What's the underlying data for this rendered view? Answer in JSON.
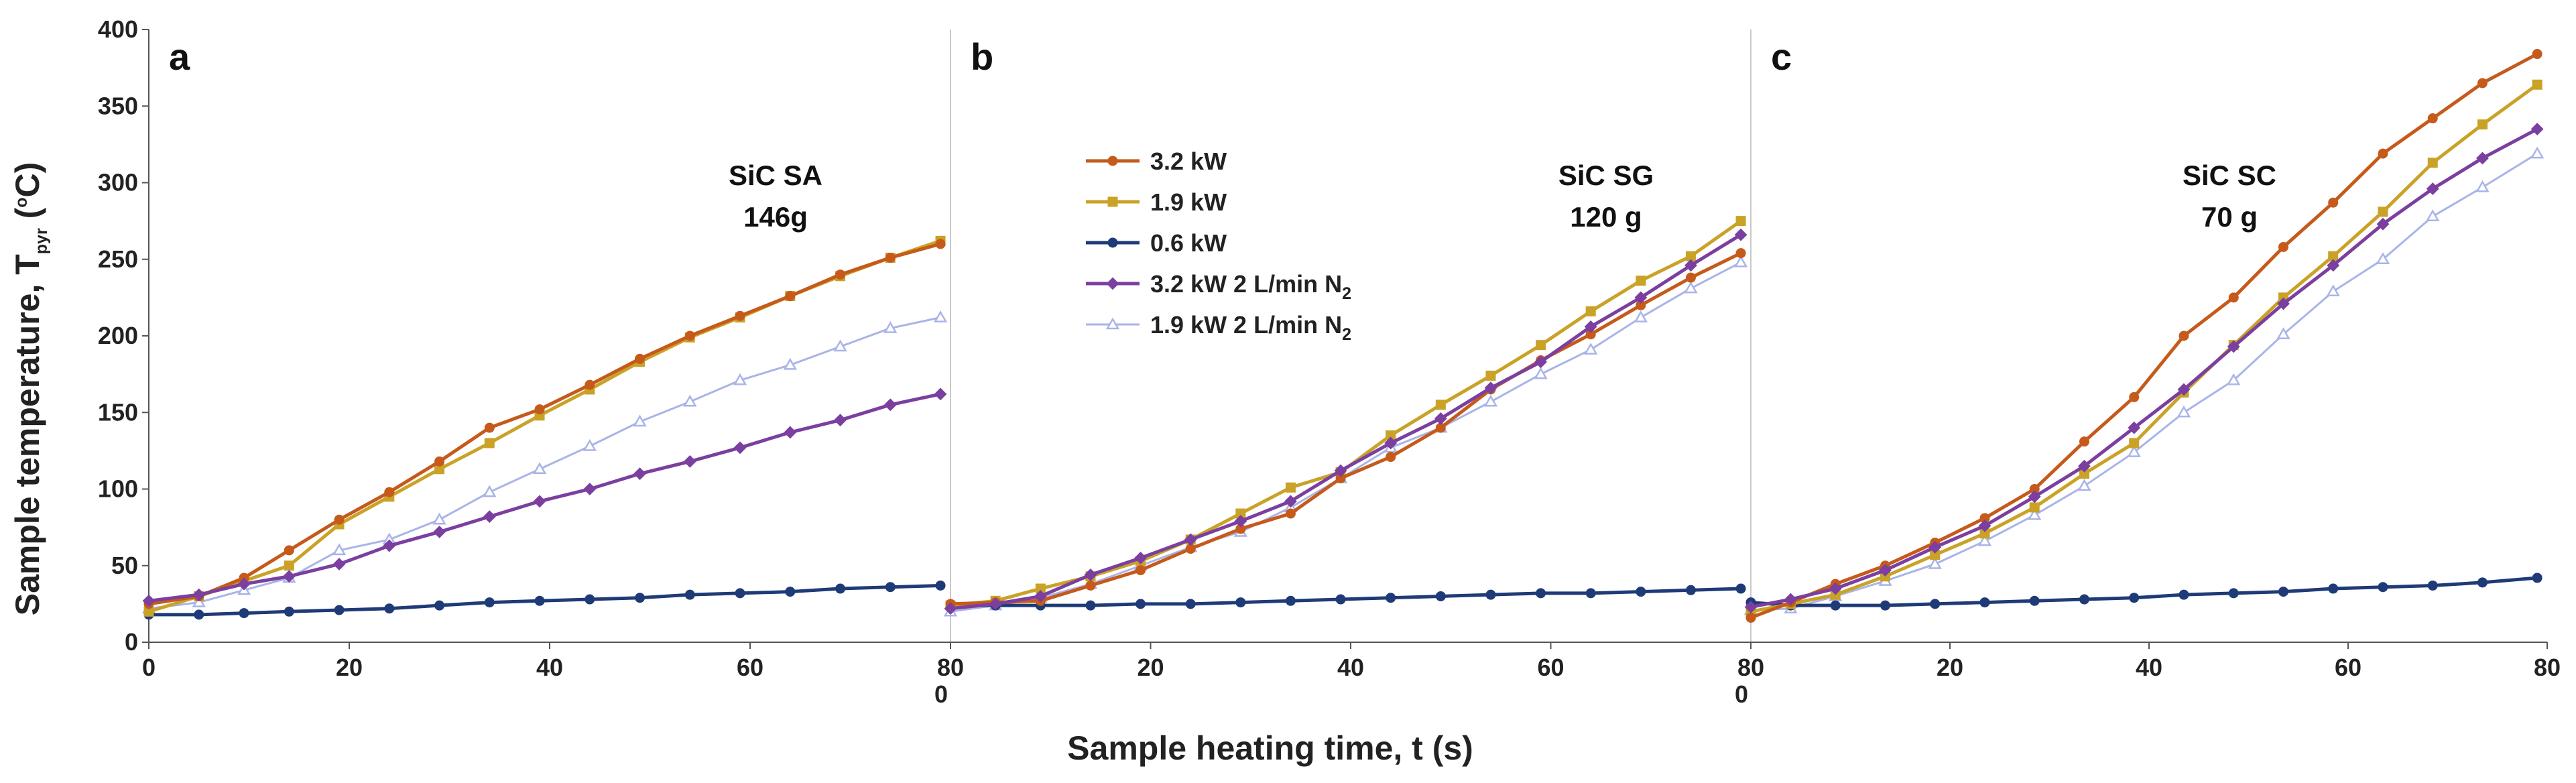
{
  "chart_data": {
    "type": "line",
    "ylabel": "Sample temperature, T",
    "ylabel_sub": "pyr",
    "ylabel_units_open": " (",
    "ylabel_units_sup": "o",
    "ylabel_units_close": "C)",
    "xlabel": "Sample heating time, t (s)",
    "ylim": [
      0,
      400
    ],
    "yticks": [
      0,
      50,
      100,
      150,
      200,
      250,
      300,
      350,
      400
    ],
    "xticks": [
      0,
      20,
      40,
      60,
      80
    ],
    "xlim": [
      0,
      80
    ],
    "panel_boundary_zero_label": "0",
    "grid": false,
    "legend": {
      "placement": "panel-b-top-left",
      "entries": [
        {
          "id": "s1",
          "label": "3.2 kW",
          "sub": ""
        },
        {
          "id": "s2",
          "label": "1.9 kW",
          "sub": ""
        },
        {
          "id": "s3",
          "label": "0.6 kW",
          "sub": ""
        },
        {
          "id": "s4",
          "label": "3.2 kW 2 L/min N",
          "sub": "2"
        },
        {
          "id": "s5",
          "label": "1.9 kW 2 L/min N",
          "sub": "2"
        }
      ]
    },
    "series_styles": [
      {
        "id": "s1",
        "name": "3.2 kW",
        "color": "#C55A1B",
        "marker": "circle",
        "fill": "#C55A1B"
      },
      {
        "id": "s2",
        "name": "1.9 kW",
        "color": "#C9A227",
        "marker": "square",
        "fill": "#C9A227"
      },
      {
        "id": "s3",
        "name": "0.6 kW",
        "color": "#1F3B77",
        "marker": "circle",
        "fill": "#1F3B77"
      },
      {
        "id": "s4",
        "name": "3.2 kW 2 L/min N2",
        "color": "#7B3FA0",
        "marker": "diamond",
        "fill": "#7B3FA0"
      },
      {
        "id": "s5",
        "name": "1.9 kW 2 L/min N2",
        "color": "#A9B4E8",
        "marker": "triangle",
        "fill": "#ffffff"
      }
    ],
    "panels": [
      {
        "letter": "a",
        "sample_line1": "SiC SA",
        "sample_line2": "146g",
        "x": [
          0,
          5,
          9.5,
          14,
          19,
          24,
          29,
          34,
          39,
          44,
          49,
          54,
          59,
          64,
          69,
          74,
          79
        ],
        "series": [
          {
            "id": "s1",
            "values": [
              25,
              30,
              42,
              60,
              80,
              98,
              118,
              140,
              152,
              168,
              185,
              200,
              213,
              226,
              240,
              251,
              260
            ]
          },
          {
            "id": "s2",
            "values": [
              20,
              30,
              40,
              50,
              77,
              95,
              113,
              130,
              148,
              165,
              183,
              199,
              212,
              226,
              239,
              251,
              262
            ]
          },
          {
            "id": "s3",
            "values": [
              18,
              18,
              19,
              20,
              21,
              22,
              24,
              26,
              27,
              28,
              29,
              31,
              32,
              33,
              35,
              36,
              37
            ]
          },
          {
            "id": "s4",
            "values": [
              27,
              31,
              38,
              43,
              51,
              63,
              72,
              82,
              92,
              100,
              110,
              118,
              127,
              137,
              145,
              155,
              162
            ]
          },
          {
            "id": "s5",
            "values": [
              22,
              26,
              34,
              42,
              60,
              67,
              80,
              98,
              113,
              128,
              144,
              157,
              171,
              181,
              193,
              205,
              212
            ]
          }
        ]
      },
      {
        "letter": "b",
        "sample_line1": "SiC SG",
        "sample_line2": "120 g",
        "x": [
          0,
          4.5,
          9,
          14,
          19,
          24,
          29,
          34,
          39,
          44,
          49,
          54,
          59,
          64,
          69,
          74,
          79
        ],
        "series": [
          {
            "id": "s1",
            "values": [
              25,
              26,
              27,
              37,
              47,
              61,
              74,
              84,
              107,
              121,
              140,
              165,
              184,
              201,
              220,
              238,
              254
            ]
          },
          {
            "id": "s2",
            "values": [
              24,
              27,
              35,
              43,
              53,
              67,
              84,
              101,
              111,
              135,
              155,
              174,
              194,
              216,
              236,
              252,
              275
            ]
          },
          {
            "id": "s3",
            "values": [
              24,
              24,
              24,
              24,
              25,
              25,
              26,
              27,
              28,
              29,
              30,
              31,
              32,
              32,
              33,
              34,
              35
            ]
          },
          {
            "id": "s4",
            "values": [
              22,
              25,
              30,
              44,
              55,
              67,
              79,
              92,
              112,
              130,
              146,
              166,
              183,
              206,
              225,
              246,
              266
            ]
          },
          {
            "id": "s5",
            "values": [
              20,
              24,
              29,
              38,
              50,
              62,
              72,
              88,
              107,
              127,
              140,
              157,
              175,
              191,
              212,
              231,
              248
            ]
          }
        ]
      },
      {
        "letter": "c",
        "sample_line1": "SiC SC",
        "sample_line2": "70 g",
        "x": [
          0,
          4,
          8.5,
          13.5,
          18.5,
          23.5,
          28.5,
          33.5,
          38.5,
          43.5,
          48.5,
          53.5,
          58.5,
          63.5,
          68.5,
          73.5,
          79
        ],
        "series": [
          {
            "id": "s1",
            "values": [
              16,
              26,
              38,
              50,
              65,
              81,
              100,
              131,
              160,
              200,
              225,
              258,
              287,
              319,
              342,
              365,
              384
            ]
          },
          {
            "id": "s2",
            "values": [
              20,
              25,
              31,
              43,
              57,
              71,
              88,
              110,
              130,
              163,
              194,
              225,
              252,
              281,
              313,
              338,
              364
            ]
          },
          {
            "id": "s3",
            "values": [
              26,
              24,
              24,
              24,
              25,
              26,
              27,
              28,
              29,
              31,
              32,
              33,
              35,
              36,
              37,
              39,
              42
            ]
          },
          {
            "id": "s4",
            "values": [
              23,
              28,
              35,
              47,
              62,
              76,
              95,
              115,
              140,
              165,
              193,
              221,
              246,
              273,
              296,
              316,
              335
            ]
          },
          {
            "id": "s5",
            "values": [
              21,
              22,
              30,
              40,
              51,
              66,
              83,
              102,
              124,
              150,
              171,
              201,
              229,
              250,
              278,
              297,
              319
            ]
          }
        ]
      }
    ]
  }
}
